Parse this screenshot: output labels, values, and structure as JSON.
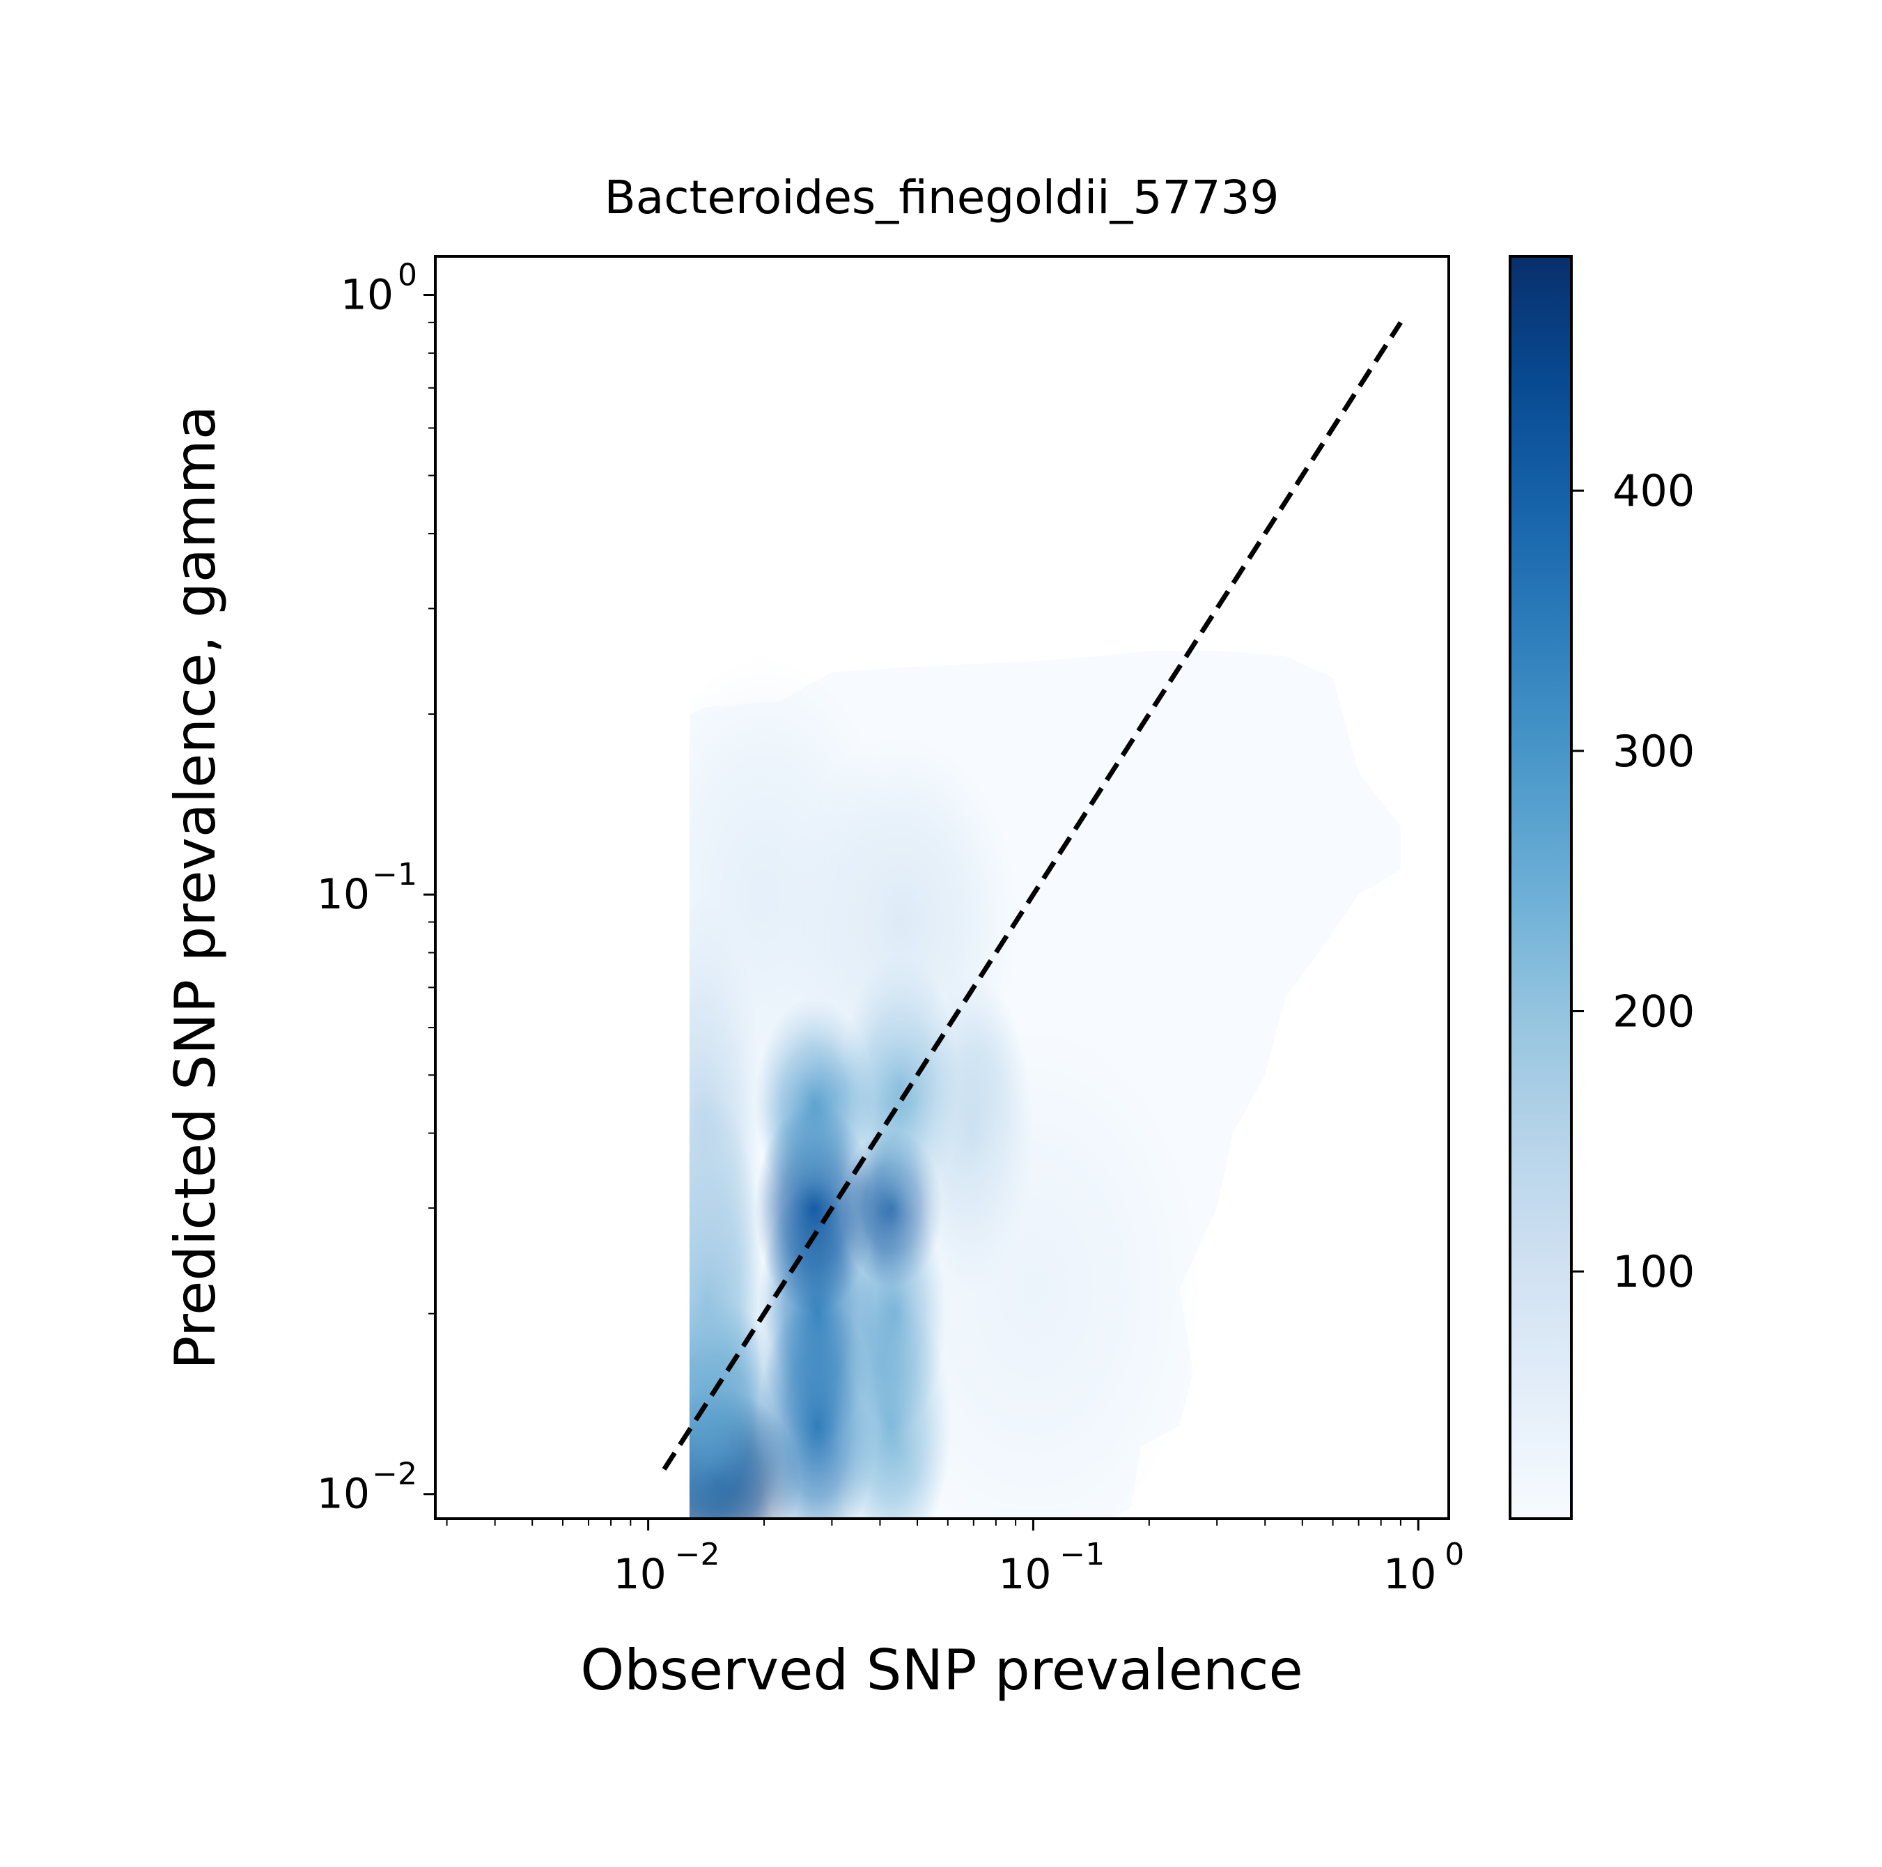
{
  "chart_data": {
    "type": "heatmap",
    "title": "Bacteroides_finegoldii_57739",
    "xlabel": "Observed SNP prevalence",
    "ylabel": "Predicted SNP prevalence, gamma",
    "x_scale": "log",
    "y_scale": "log",
    "xlim": [
      0.0028,
      1.2
    ],
    "ylim": [
      0.0091,
      1.16
    ],
    "grid": false,
    "x_major_ticks": [
      {
        "value": 0.01,
        "label": "10",
        "exp": "−2"
      },
      {
        "value": 0.1,
        "label": "10",
        "exp": "−1"
      },
      {
        "value": 1,
        "label": "10",
        "exp": "0"
      }
    ],
    "y_major_ticks": [
      {
        "value": 0.01,
        "label": "10",
        "exp": "−2"
      },
      {
        "value": 0.1,
        "label": "10",
        "exp": "−1"
      },
      {
        "value": 1,
        "label": "10",
        "exp": "0"
      }
    ],
    "diagonal_reference": {
      "style": "dashed",
      "color": "#000000",
      "x": [
        0.011,
        0.9
      ],
      "y": [
        0.011,
        0.9
      ]
    },
    "colorbar": {
      "colormap": "Blues",
      "range": [
        5,
        490
      ],
      "ticks": [
        100,
        200,
        300,
        400
      ],
      "tick_labels": [
        "100",
        "200",
        "300",
        "400"
      ]
    },
    "density_blobs": [
      {
        "x": 0.015,
        "y": 0.0105,
        "value": 480,
        "sx": 0.1,
        "sy": 0.07
      },
      {
        "x": 0.0145,
        "y": 0.013,
        "value": 330,
        "sx": 0.09,
        "sy": 0.1
      },
      {
        "x": 0.0142,
        "y": 0.021,
        "value": 230,
        "sx": 0.07,
        "sy": 0.16
      },
      {
        "x": 0.014,
        "y": 0.04,
        "value": 140,
        "sx": 0.07,
        "sy": 0.18
      },
      {
        "x": 0.0275,
        "y": 0.013,
        "value": 360,
        "sx": 0.07,
        "sy": 0.1
      },
      {
        "x": 0.0275,
        "y": 0.02,
        "value": 340,
        "sx": 0.07,
        "sy": 0.1
      },
      {
        "x": 0.027,
        "y": 0.03,
        "value": 420,
        "sx": 0.07,
        "sy": 0.08
      },
      {
        "x": 0.027,
        "y": 0.045,
        "value": 290,
        "sx": 0.07,
        "sy": 0.08
      },
      {
        "x": 0.043,
        "y": 0.013,
        "value": 230,
        "sx": 0.07,
        "sy": 0.1
      },
      {
        "x": 0.044,
        "y": 0.02,
        "value": 280,
        "sx": 0.06,
        "sy": 0.09
      },
      {
        "x": 0.043,
        "y": 0.03,
        "value": 420,
        "sx": 0.06,
        "sy": 0.06
      },
      {
        "x": 0.045,
        "y": 0.048,
        "value": 230,
        "sx": 0.07,
        "sy": 0.1
      },
      {
        "x": 0.07,
        "y": 0.04,
        "value": 150,
        "sx": 0.07,
        "sy": 0.12
      },
      {
        "x": 0.045,
        "y": 0.09,
        "value": 70,
        "sx": 0.14,
        "sy": 0.14
      },
      {
        "x": 0.02,
        "y": 0.1,
        "value": 50,
        "sx": 0.16,
        "sy": 0.18
      },
      {
        "x": 0.1,
        "y": 0.022,
        "value": 35,
        "sx": 0.2,
        "sy": 0.2
      }
    ]
  }
}
